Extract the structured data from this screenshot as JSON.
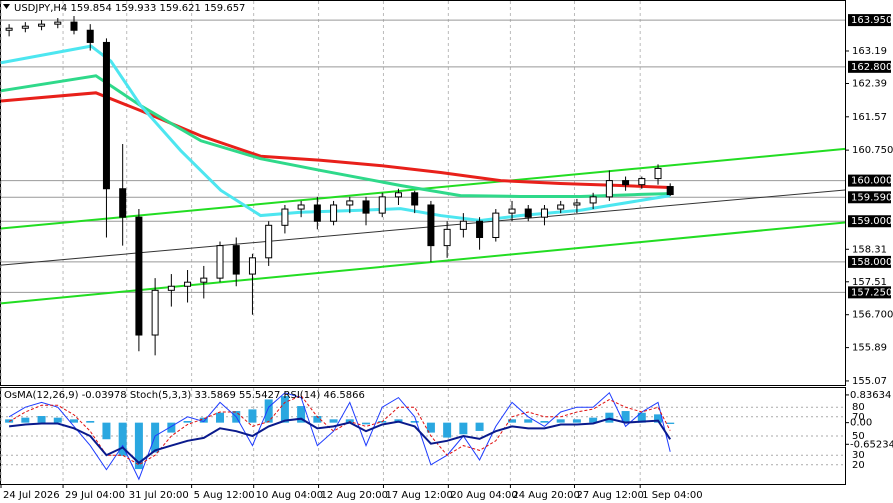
{
  "chart_data": {
    "type": "candlestick",
    "header": "USDJPY,H4  159.854 159.933 159.621 159.657",
    "x": [
      2,
      6,
      10,
      14,
      18,
      22,
      26,
      30,
      34,
      38,
      42,
      46,
      50,
      54,
      58,
      62,
      66,
      70,
      74,
      78,
      82,
      86,
      90,
      94,
      98,
      102,
      106,
      110,
      114,
      118,
      122,
      126,
      130,
      134,
      138,
      142,
      146,
      150,
      154,
      158,
      162,
      165
    ],
    "open": [
      163.7,
      163.75,
      163.8,
      163.85,
      163.9,
      163.7,
      163.4,
      159.8,
      159.1,
      156.2,
      157.3,
      157.4,
      157.5,
      157.6,
      158.4,
      157.7,
      158.1,
      158.9,
      159.3,
      159.4,
      159.0,
      159.4,
      159.5,
      159.2,
      159.6,
      159.7,
      159.4,
      158.4,
      158.8,
      159.0,
      158.6,
      159.2,
      159.3,
      159.1,
      159.3,
      159.4,
      159.45,
      159.6,
      160.0,
      159.9,
      160.05,
      159.854
    ],
    "high": [
      163.85,
      163.9,
      163.95,
      164.0,
      164.05,
      163.85,
      163.5,
      160.9,
      159.3,
      157.6,
      157.7,
      157.8,
      157.9,
      158.5,
      158.6,
      158.2,
      159.0,
      159.4,
      159.5,
      159.6,
      159.5,
      159.6,
      159.6,
      159.7,
      159.8,
      159.75,
      159.5,
      159.0,
      159.2,
      159.1,
      159.3,
      159.5,
      159.4,
      159.4,
      159.5,
      159.55,
      159.7,
      160.25,
      160.1,
      160.1,
      160.4,
      159.933
    ],
    "low": [
      163.55,
      163.65,
      163.7,
      163.75,
      163.6,
      163.2,
      158.6,
      158.4,
      155.8,
      155.7,
      156.9,
      157.0,
      157.1,
      157.5,
      157.4,
      156.7,
      157.9,
      158.7,
      159.1,
      158.8,
      158.9,
      159.2,
      158.9,
      159.1,
      159.4,
      159.2,
      158.0,
      158.1,
      158.6,
      158.3,
      158.5,
      159.0,
      159.0,
      158.9,
      159.2,
      159.2,
      159.3,
      159.5,
      159.75,
      159.8,
      159.9,
      159.621
    ],
    "close": [
      163.75,
      163.8,
      163.85,
      163.9,
      163.7,
      163.4,
      159.8,
      159.1,
      156.2,
      157.3,
      157.4,
      157.5,
      157.6,
      158.4,
      157.7,
      158.1,
      158.9,
      159.3,
      159.4,
      159.0,
      159.4,
      159.5,
      159.2,
      159.6,
      159.7,
      159.4,
      158.4,
      158.8,
      159.0,
      158.6,
      159.2,
      159.3,
      159.1,
      159.3,
      159.4,
      159.45,
      159.6,
      160.0,
      159.9,
      160.05,
      160.3,
      159.657
    ],
    "xlim": [
      0,
      208.1
    ],
    "xticks": [
      {
        "value": 0,
        "label": "24 Jul 2026"
      },
      {
        "value": 15.3,
        "label": "29 Jul 04:00"
      },
      {
        "value": 31,
        "label": "31 Jul 20:00"
      },
      {
        "value": 47,
        "label": "5 Aug 12:00"
      },
      {
        "value": 62.3,
        "label": "10 Aug 04:00"
      },
      {
        "value": 78.3,
        "label": "12 Aug 20:00"
      },
      {
        "value": 94.3,
        "label": "17 Aug 12:00"
      },
      {
        "value": 110.3,
        "label": "20 Aug 04:00"
      },
      {
        "value": 125.6,
        "label": "24 Aug 20:00"
      },
      {
        "value": 141.4,
        "label": "27 Aug 12:00"
      },
      {
        "value": 157.6,
        "label": "1 Sep 04:00"
      }
    ],
    "grid": true,
    "ylim": [
      154.97,
      164.42
    ],
    "yticks": [
      163.19,
      162.39,
      161.57,
      {
        "value": 160.75,
        "label": "160.750"
      },
      158.31,
      157.51,
      {
        "value": 156.7,
        "label": "156.700"
      },
      155.89,
      155.07
    ],
    "levels": [
      {
        "value": 163.95,
        "label": "163.950"
      },
      {
        "value": 162.8,
        "label": "162.800"
      },
      {
        "value": 160,
        "label": "160.000"
      },
      {
        "value": 159.59,
        "label": "159.590"
      },
      {
        "value": 159,
        "label": "159.000"
      },
      {
        "value": 158,
        "label": "158.000"
      },
      {
        "value": 157.25,
        "label": "157.250"
      }
    ],
    "ma_lines": [
      {
        "color": "#e8201a",
        "x": [
          0,
          23.4,
          34.5,
          49.3,
          64,
          78.8,
          93.6,
          108.4,
          123.2,
          137.9,
          152.7,
          165
        ],
        "values": [
          161.96,
          162.16,
          161.72,
          161.1,
          160.6,
          160.5,
          160.37,
          160.2,
          160.0,
          159.93,
          159.88,
          159.83
        ]
      },
      {
        "color": "#2fd98a",
        "x": [
          0,
          23.4,
          34.5,
          49.3,
          64,
          78.8,
          98.5,
          113.3,
          128.1,
          142.9,
          157.6,
          165
        ],
        "values": [
          162.21,
          162.58,
          161.84,
          160.98,
          160.54,
          160.25,
          159.88,
          159.63,
          159.61,
          159.61,
          159.66,
          159.68
        ]
      },
      {
        "color": "#4de6f0",
        "x": [
          0,
          22.2,
          27.1,
          34.5,
          44.3,
          54.2,
          64,
          73.9,
          88.7,
          98.5,
          108.4,
          118.2,
          128.1,
          142.9,
          157.6,
          165
        ],
        "values": [
          162.9,
          163.31,
          162.94,
          161.84,
          160.74,
          159.76,
          159.14,
          159.22,
          159.27,
          159.31,
          159.14,
          159.02,
          159.14,
          159.27,
          159.51,
          159.63
        ]
      }
    ],
    "trendlines": [
      {
        "color": "#22dd22",
        "x": [
          0,
          208.1
        ],
        "values": [
          158.82,
          160.78
        ]
      },
      {
        "color": "#22dd22",
        "x": [
          0,
          208.1
        ],
        "values": [
          156.98,
          158.97
        ]
      },
      {
        "color": "#333333",
        "x": [
          0,
          208.1
        ],
        "values": [
          157.92,
          159.77
        ]
      }
    ],
    "oscillator": {
      "header": "OsMA(12,26,9) -0.03978  Stoch(5,3,3) 33.5869 55.5427  RSI(14) 46.5866",
      "ylim": [
        0,
        100
      ],
      "yticks": [
        80,
        70,
        50,
        30,
        20
      ],
      "osma_ylim": [
        -1.85,
        1.045
      ],
      "osma_yticks": [
        0.83634,
        {
          "value": 0,
          "label": "0.00"
        },
        -0.65234
      ],
      "osma_color": "#2aa7e0",
      "osma": [
        0.1,
        0.15,
        0.2,
        0.15,
        0.1,
        0.05,
        -0.5,
        -1.0,
        -1.4,
        -0.9,
        -0.3,
        0.05,
        0.15,
        0.3,
        0.35,
        0.4,
        0.7,
        0.8,
        0.5,
        0.2,
        0.1,
        0.1,
        -0.05,
        0.05,
        0.1,
        0.05,
        -0.3,
        -0.45,
        -0.35,
        -0.25,
        0.0,
        0.1,
        0.1,
        0.05,
        0.1,
        0.1,
        0.15,
        0.3,
        0.35,
        0.3,
        0.25,
        -0.03978
      ],
      "lines": [
        {
          "color": "#1e3cff",
          "values": [
            70,
            80,
            85,
            80,
            60,
            40,
            15,
            40,
            5,
            50,
            60,
            70,
            65,
            85,
            70,
            40,
            80,
            95,
            90,
            40,
            55,
            85,
            40,
            80,
            90,
            70,
            20,
            30,
            50,
            25,
            60,
            85,
            70,
            60,
            75,
            80,
            80,
            95,
            60,
            75,
            85,
            33.5869
          ]
        },
        {
          "color": "#e01010",
          "values": [
            65,
            75,
            82,
            82,
            72,
            55,
            30,
            30,
            20,
            30,
            50,
            62,
            68,
            75,
            75,
            60,
            65,
            85,
            92,
            70,
            55,
            65,
            60,
            65,
            80,
            80,
            50,
            30,
            40,
            35,
            45,
            70,
            75,
            70,
            70,
            75,
            78,
            88,
            80,
            75,
            80,
            55.5427
          ]
        },
        {
          "color": "#0a1a8c",
          "values": [
            60,
            62,
            63,
            63,
            58,
            50,
            30,
            38,
            22,
            35,
            40,
            45,
            48,
            58,
            55,
            50,
            60,
            66,
            68,
            58,
            60,
            64,
            55,
            62,
            65,
            60,
            42,
            45,
            50,
            47,
            55,
            60,
            58,
            58,
            62,
            62,
            63,
            68,
            64,
            65,
            66,
            46.5866
          ]
        }
      ]
    }
  }
}
